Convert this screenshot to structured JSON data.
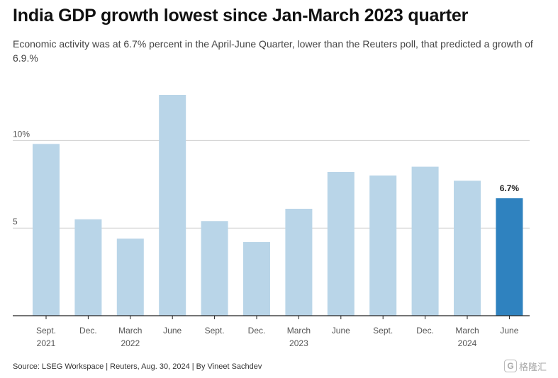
{
  "title": "India GDP growth lowest since Jan-March 2023 quarter",
  "subtitle": "Economic activity was at 6.7% percent in the April-June Quarter, lower than the Reuters poll, that predicted a growth of 6.9.%",
  "source": "Source: LSEG Workspace | Reuters, Aug. 30, 2024 | By Vineet Sachdev",
  "watermark": {
    "icon": "gelonghui-logo-icon",
    "glyph": "G",
    "text": "格隆汇"
  },
  "colors": {
    "bar": "#b9d5e8",
    "highlight": "#2f82bf",
    "grid": "#d0d0d0",
    "axis": "#222222"
  },
  "chart_data": {
    "type": "bar",
    "categories": [
      [
        "Sept.",
        "2021"
      ],
      [
        "Dec.",
        ""
      ],
      [
        "March",
        "2022"
      ],
      [
        "June",
        ""
      ],
      [
        "Sept.",
        ""
      ],
      [
        "Dec.",
        ""
      ],
      [
        "March",
        "2023"
      ],
      [
        "June",
        ""
      ],
      [
        "Sept.",
        ""
      ],
      [
        "Dec.",
        ""
      ],
      [
        "March",
        "2024"
      ],
      [
        "June",
        ""
      ]
    ],
    "values": [
      9.8,
      5.5,
      4.4,
      12.6,
      5.4,
      4.2,
      6.1,
      8.2,
      8.0,
      8.5,
      7.7,
      6.7
    ],
    "highlight_index": 11,
    "data_labels": [
      {
        "index": 11,
        "text": "6.7%"
      }
    ],
    "yticks": [
      {
        "value": 5,
        "label": "5"
      },
      {
        "value": 10,
        "label": "10%"
      }
    ],
    "ylim": [
      0,
      13.5
    ],
    "grid": true,
    "title": "India GDP growth lowest since Jan-March 2023 quarter",
    "xlabel": "",
    "ylabel": ""
  }
}
